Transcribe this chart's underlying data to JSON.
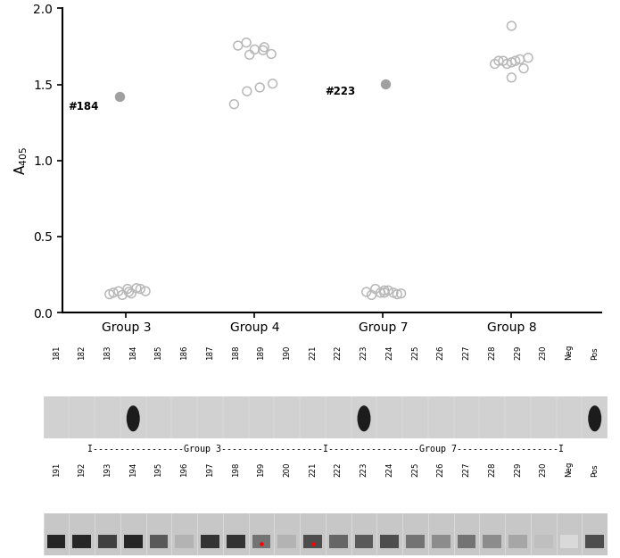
{
  "group3_scatter": [
    0.12,
    0.14,
    0.155,
    0.16,
    0.14,
    0.13,
    0.115,
    0.125,
    0.155,
    0.135,
    1.42
  ],
  "group3_x_offsets": [
    -0.13,
    -0.06,
    0.01,
    0.08,
    0.15,
    -0.1,
    -0.03,
    0.04,
    0.11,
    0.02,
    -0.05
  ],
  "group4_scatter": [
    1.37,
    1.455,
    1.48,
    1.505,
    1.755,
    1.775,
    1.73,
    1.725,
    1.7,
    1.695,
    1.745
  ],
  "group4_x_offsets": [
    -0.16,
    -0.06,
    0.04,
    0.14,
    -0.13,
    -0.065,
    0.0,
    0.065,
    0.13,
    -0.04,
    0.075
  ],
  "group7_scatter": [
    0.135,
    0.155,
    0.145,
    0.13,
    0.125,
    0.115,
    0.13,
    0.145,
    0.12,
    0.13,
    1.505
  ],
  "group7_x_offsets": [
    -0.13,
    -0.06,
    0.01,
    0.08,
    0.14,
    -0.09,
    -0.02,
    0.04,
    0.11,
    0.01,
    0.02
  ],
  "group8_scatter": [
    1.635,
    1.655,
    1.645,
    1.665,
    1.675,
    1.655,
    1.635,
    1.655,
    1.605,
    1.545,
    1.885
  ],
  "group8_x_offsets": [
    -0.13,
    -0.065,
    0.0,
    0.065,
    0.13,
    -0.1,
    -0.035,
    0.03,
    0.095,
    0.0,
    0.0
  ],
  "group_positions": [
    1,
    2,
    3,
    4
  ],
  "group_labels": [
    "Group 3",
    "Group 4",
    "Group 7",
    "Group 8"
  ],
  "ylabel": "A$_{405}$",
  "ylim": [
    0,
    2.0
  ],
  "yticks": [
    0.0,
    0.5,
    1.0,
    1.5,
    2.0
  ],
  "scatter_color_open": "#b8b8b8",
  "scatter_color_filled": "#a0a0a0",
  "top_labels_row1": [
    "181",
    "182",
    "183",
    "184",
    "185",
    "186",
    "187",
    "188",
    "189",
    "190",
    "221",
    "222",
    "223",
    "224",
    "225",
    "226",
    "227",
    "228",
    "229",
    "230",
    "Neg",
    "Pos"
  ],
  "top_labels_row2": [
    "191",
    "192",
    "193",
    "194",
    "195",
    "196",
    "197",
    "198",
    "199",
    "200",
    "221",
    "222",
    "223",
    "224",
    "225",
    "226",
    "227",
    "228",
    "229",
    "230",
    "Neg",
    "Pos"
  ],
  "gel1_bands": [
    3,
    12,
    21
  ],
  "gel2_band_intensities": [
    0.15,
    0.15,
    0.25,
    0.15,
    0.35,
    0.7,
    0.2,
    0.2,
    0.45,
    0.7,
    0.3,
    0.4,
    0.35,
    0.3,
    0.45,
    0.55,
    0.45,
    0.55,
    0.65,
    0.75,
    0.85,
    0.3
  ],
  "gel1_bg": 0.82,
  "gel2_bg": 0.78,
  "red_dot_lanes": [
    8,
    10
  ]
}
